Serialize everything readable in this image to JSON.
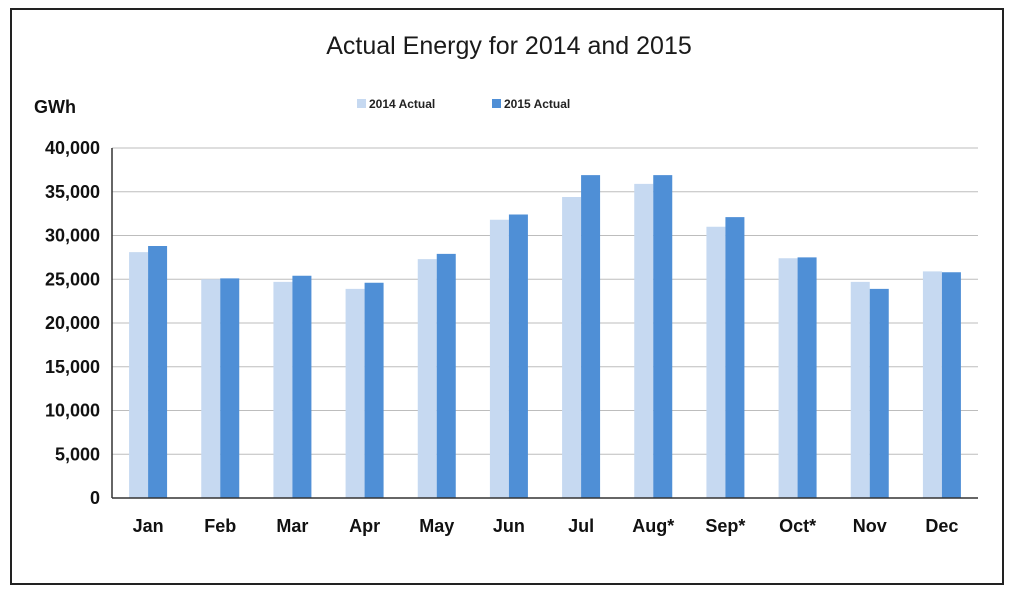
{
  "chart_data": {
    "type": "bar",
    "title": "Actual Energy for 2014 and 2015",
    "ylabel": "GWh",
    "xlabel": "",
    "categories": [
      "Jan",
      "Feb",
      "Mar",
      "Apr",
      "May",
      "Jun",
      "Jul",
      "Aug*",
      "Sep*",
      "Oct*",
      "Nov",
      "Dec"
    ],
    "series": [
      {
        "name": "2014 Actual",
        "color": "#c6d9f1",
        "values": [
          28100,
          25000,
          24700,
          23900,
          27300,
          31800,
          34400,
          35900,
          31000,
          27400,
          24700,
          25900
        ]
      },
      {
        "name": "2015 Actual",
        "color": "#4f8fd6",
        "values": [
          28800,
          25100,
          25400,
          24600,
          27900,
          32400,
          36900,
          36900,
          32100,
          27500,
          23900,
          25800
        ]
      }
    ],
    "ylim": [
      0,
      40000
    ],
    "yticks": [
      0,
      5000,
      10000,
      15000,
      20000,
      25000,
      30000,
      35000,
      40000
    ],
    "ytick_labels": [
      "0",
      "5,000",
      "10,000",
      "15,000",
      "20,000",
      "25,000",
      "30,000",
      "35,000",
      "40,000"
    ],
    "grid": true,
    "legend_position": "top-center"
  }
}
